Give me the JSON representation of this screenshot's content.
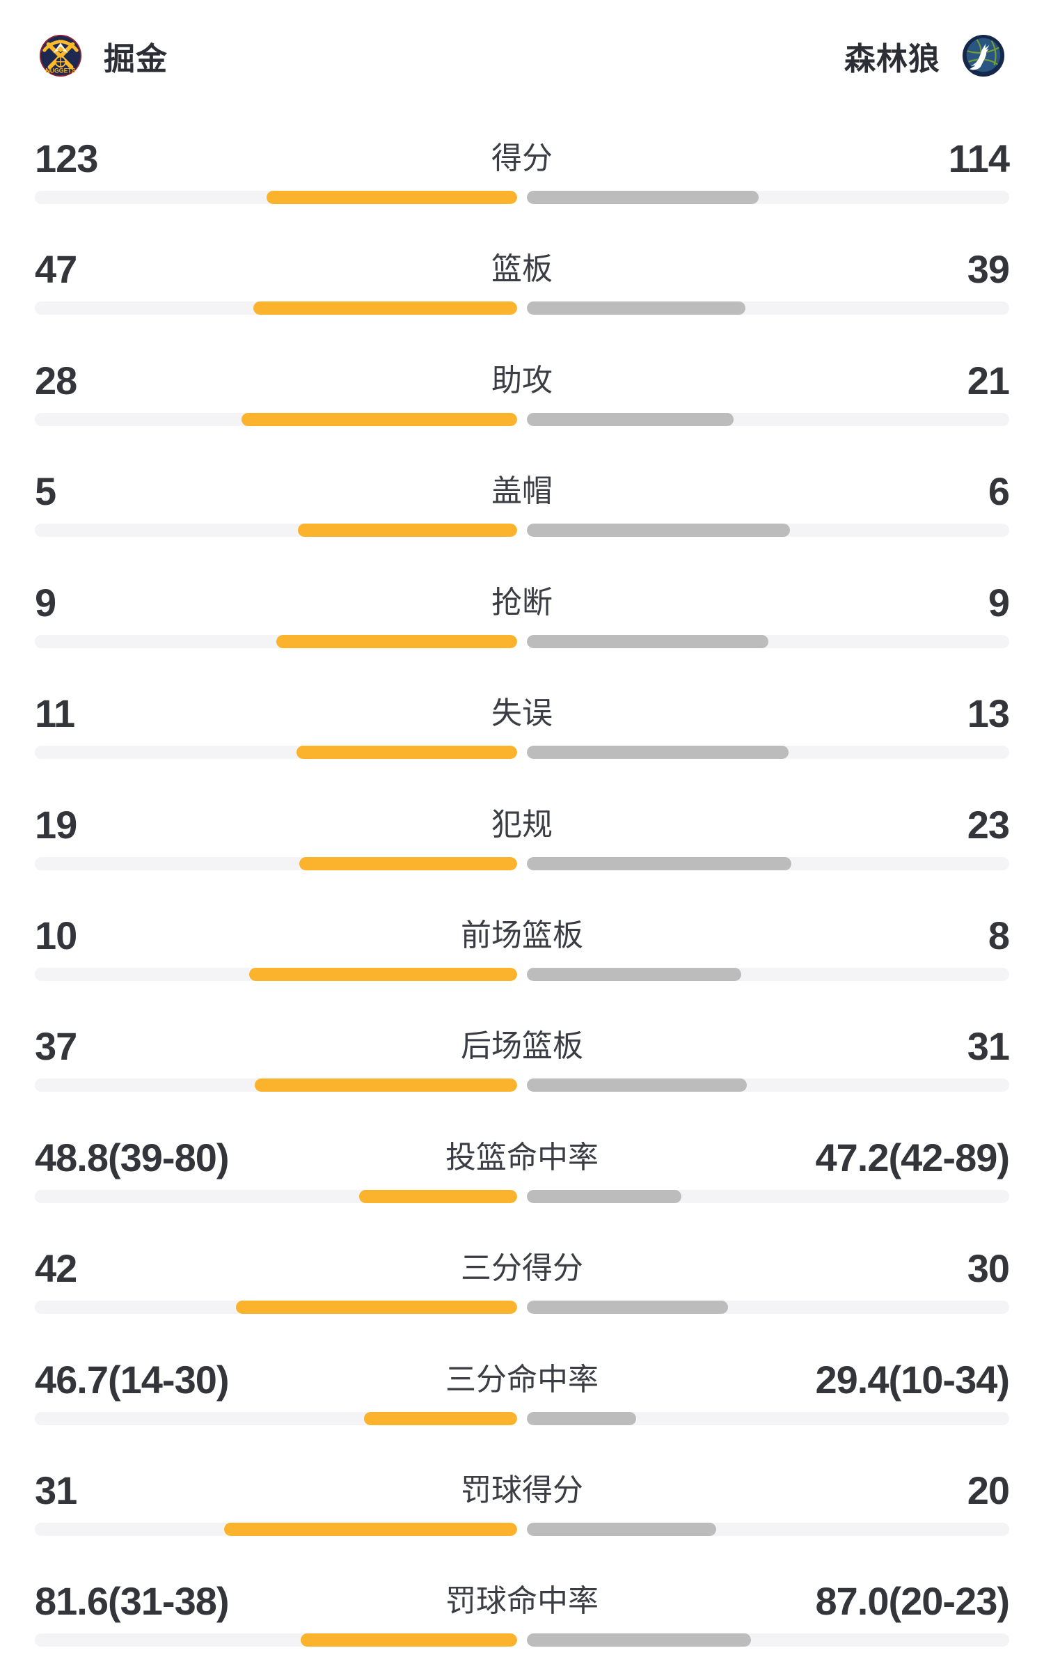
{
  "header": {
    "home": {
      "name": "掘金",
      "logo_label": "NUGGETS"
    },
    "away": {
      "name": "森林狼"
    }
  },
  "colors": {
    "background": "#FFFFFF",
    "home_fill": "#FBB32E",
    "away_fill": "#BCBCBC",
    "track": "#F4F4F6",
    "value_text": "#33353B",
    "label_text": "#3B3D44",
    "nuggets_navy": "#1D2951",
    "nuggets_gold": "#FDB927",
    "nuggets_maroon": "#8B2131",
    "nuggets_white": "#F8F6EE",
    "wolves_navy": "#14284B",
    "wolves_blue": "#2A5580",
    "wolves_green": "#7BA62F",
    "wolves_white": "#FFFFFF"
  },
  "stats": [
    {
      "label": "得分",
      "home": "123",
      "away": "114",
      "home_pct": 51.9,
      "away_pct": 48.1
    },
    {
      "label": "篮板",
      "home": "47",
      "away": "39",
      "home_pct": 54.7,
      "away_pct": 45.3
    },
    {
      "label": "助攻",
      "home": "28",
      "away": "21",
      "home_pct": 57.1,
      "away_pct": 42.9
    },
    {
      "label": "盖帽",
      "home": "5",
      "away": "6",
      "home_pct": 45.5,
      "away_pct": 54.5
    },
    {
      "label": "抢断",
      "home": "9",
      "away": "9",
      "home_pct": 50.0,
      "away_pct": 50.0
    },
    {
      "label": "失误",
      "home": "11",
      "away": "13",
      "home_pct": 45.8,
      "away_pct": 54.2
    },
    {
      "label": "犯规",
      "home": "19",
      "away": "23",
      "home_pct": 45.2,
      "away_pct": 54.8
    },
    {
      "label": "前场篮板",
      "home": "10",
      "away": "8",
      "home_pct": 55.6,
      "away_pct": 44.4
    },
    {
      "label": "后场篮板",
      "home": "37",
      "away": "31",
      "home_pct": 54.4,
      "away_pct": 45.6
    },
    {
      "label": "投篮命中率",
      "home": "48.8(39-80)",
      "away": "47.2(42-89)",
      "home_pct": 32.8,
      "away_pct": 32.1
    },
    {
      "label": "三分得分",
      "home": "42",
      "away": "30",
      "home_pct": 58.3,
      "away_pct": 41.7
    },
    {
      "label": "三分命中率",
      "home": "46.7(14-30)",
      "away": "29.4(10-34)",
      "home_pct": 31.8,
      "away_pct": 22.7
    },
    {
      "label": "罚球得分",
      "home": "31",
      "away": "20",
      "home_pct": 60.8,
      "away_pct": 39.2
    },
    {
      "label": "罚球命中率",
      "home": "81.6(31-38)",
      "away": "87.0(20-23)",
      "home_pct": 44.9,
      "away_pct": 46.5
    }
  ]
}
